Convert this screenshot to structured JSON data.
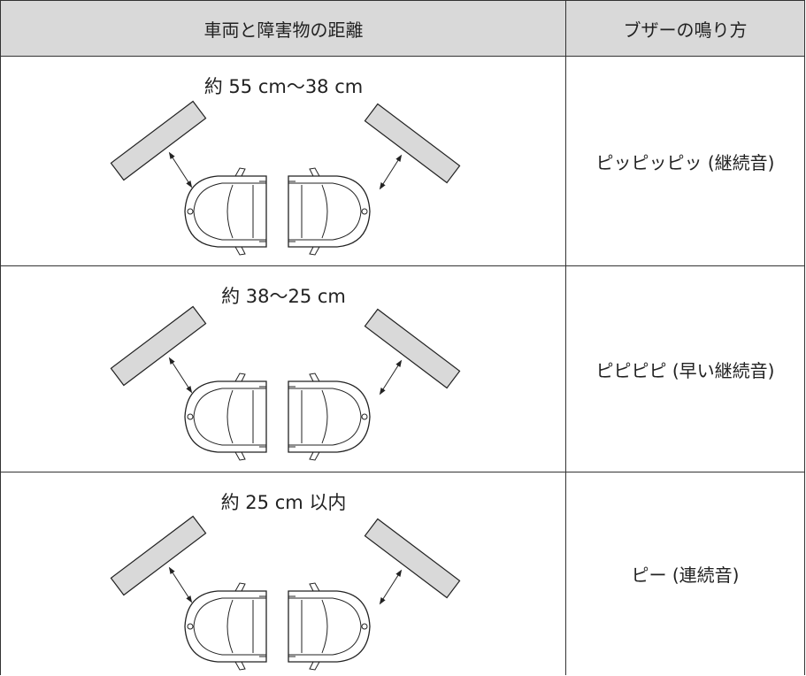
{
  "table": {
    "header": [
      "車両と障害物の距離",
      "ブザーの鳴り方"
    ],
    "rows": [
      {
        "distance": "約 55 cm〜38 cm",
        "buzzer": "ピッピッピッ (継続音)"
      },
      {
        "distance": "約 38〜25 cm",
        "buzzer": "ピピピピ (早い継続音)"
      },
      {
        "distance": "約 25 cm 以内",
        "buzzer": "ピー (連続音)"
      }
    ]
  }
}
